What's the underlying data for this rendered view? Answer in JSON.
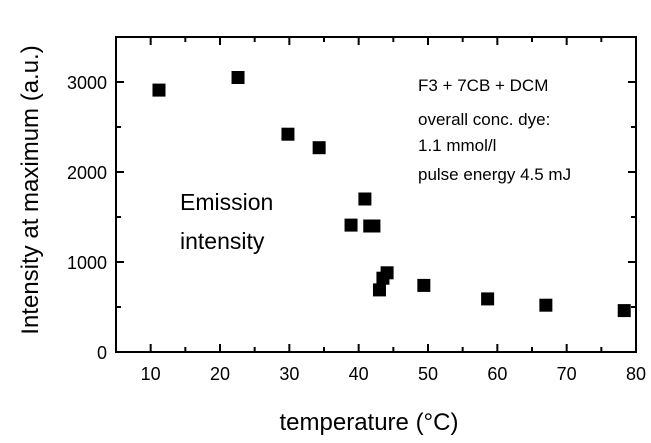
{
  "chart_data": {
    "type": "scatter",
    "xlabel": "temperature (°C)",
    "ylabel": "Intensity at maximum (a.u.)",
    "xlim": [
      5,
      80
    ],
    "ylim": [
      0,
      3500
    ],
    "x_ticks": [
      10,
      20,
      30,
      40,
      50,
      60,
      70,
      80
    ],
    "y_ticks": [
      0,
      1000,
      2000,
      3000
    ],
    "x_tick_labels": [
      "10",
      "20",
      "30",
      "40",
      "50",
      "60",
      "70",
      "80"
    ],
    "y_tick_labels": [
      "0",
      "1000",
      "2000",
      "3000"
    ],
    "grid": false,
    "marker": "filled-square",
    "color": "#000000",
    "points": [
      {
        "x": 11.2,
        "y": 2910
      },
      {
        "x": 22.6,
        "y": 3050
      },
      {
        "x": 29.8,
        "y": 2420
      },
      {
        "x": 34.3,
        "y": 2270
      },
      {
        "x": 38.9,
        "y": 1410
      },
      {
        "x": 40.9,
        "y": 1700
      },
      {
        "x": 41.6,
        "y": 1400
      },
      {
        "x": 42.2,
        "y": 1400
      },
      {
        "x": 43.0,
        "y": 690
      },
      {
        "x": 43.5,
        "y": 820
      },
      {
        "x": 44.1,
        "y": 880
      },
      {
        "x": 49.4,
        "y": 740
      },
      {
        "x": 58.6,
        "y": 590
      },
      {
        "x": 67.0,
        "y": 520
      },
      {
        "x": 78.3,
        "y": 460
      }
    ],
    "annotations": {
      "legend_text": [
        "F3 + 7CB + DCM",
        "overall conc. dye:",
        "1.1 mmol/l",
        "pulse energy 4.5 mJ"
      ],
      "series_label": [
        "Emission",
        "intensity"
      ]
    }
  }
}
